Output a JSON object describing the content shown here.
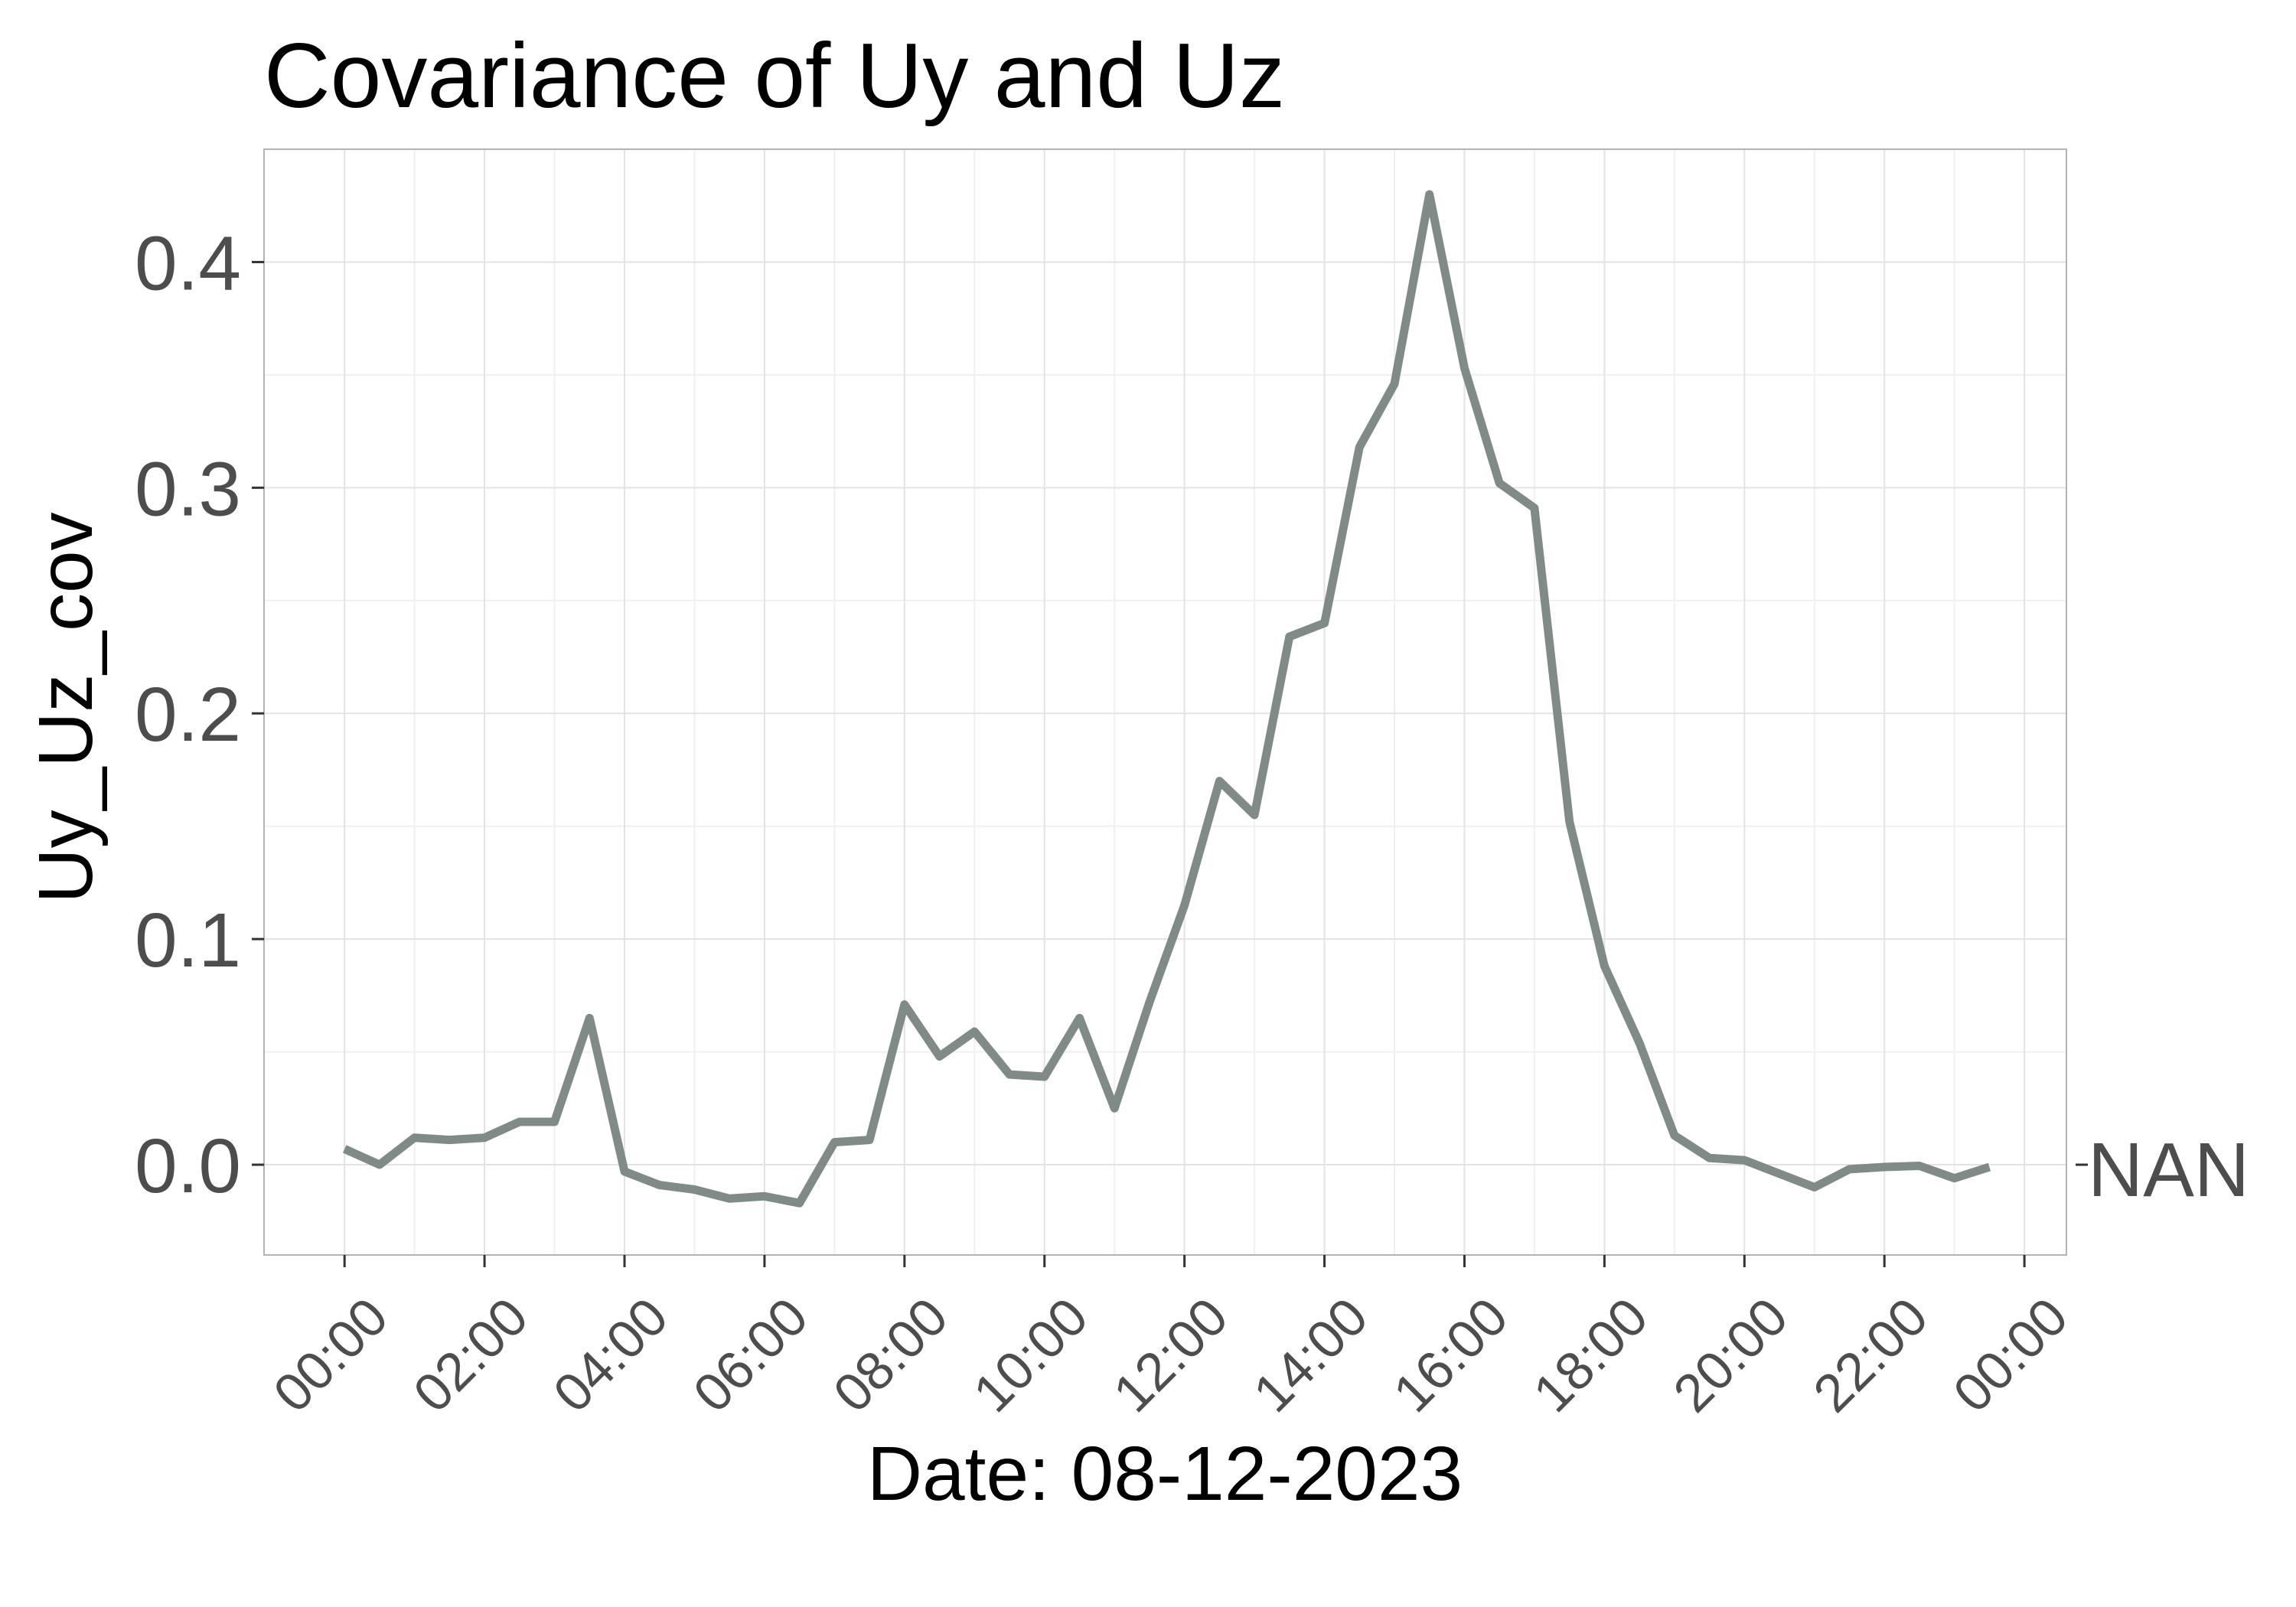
{
  "chart_data": {
    "type": "line",
    "title": "Covariance of Uy and Uz",
    "xlabel": "Date: 08-12-2023",
    "ylabel": "Uy_Uz_cov",
    "x_ticks": [
      "00:00",
      "02:00",
      "04:00",
      "06:00",
      "08:00",
      "10:00",
      "12:00",
      "14:00",
      "16:00",
      "18:00",
      "20:00",
      "22:00",
      "00:00"
    ],
    "y_ticks": [
      "0.0",
      "0.1",
      "0.2",
      "0.3",
      "0.4"
    ],
    "xlim": [
      "00:00",
      "24:00"
    ],
    "ylim": [
      -0.04,
      0.45
    ],
    "grid": true,
    "series": [
      {
        "end_label": "NAN",
        "color": "#808a87",
        "x": [
          "00:00",
          "00:30",
          "01:00",
          "01:30",
          "02:00",
          "02:30",
          "03:00",
          "03:30",
          "04:00",
          "04:30",
          "05:00",
          "05:30",
          "06:00",
          "06:30",
          "07:00",
          "07:30",
          "08:00",
          "08:30",
          "09:00",
          "09:30",
          "10:00",
          "10:30",
          "11:00",
          "11:30",
          "12:00",
          "12:30",
          "13:00",
          "13:30",
          "14:00",
          "14:30",
          "15:00",
          "15:30",
          "16:00",
          "16:30",
          "17:00",
          "17:30",
          "18:00",
          "18:30",
          "19:00",
          "19:30",
          "20:00",
          "20:30",
          "21:00",
          "21:30",
          "22:00",
          "22:30",
          "23:00",
          "23:30"
        ],
        "values": [
          0.007,
          0.0,
          0.012,
          0.011,
          0.012,
          0.019,
          0.019,
          0.065,
          -0.003,
          -0.009,
          -0.011,
          -0.015,
          -0.014,
          -0.017,
          0.01,
          0.011,
          0.071,
          0.048,
          0.059,
          0.04,
          0.039,
          0.065,
          0.025,
          0.072,
          0.115,
          0.17,
          0.155,
          0.234,
          0.24,
          0.318,
          0.346,
          0.43,
          0.353,
          0.302,
          0.291,
          0.152,
          0.088,
          0.054,
          0.013,
          0.003,
          0.002,
          -0.004,
          -0.01,
          -0.002,
          -0.001,
          -0.0005,
          -0.006,
          -0.001
        ]
      }
    ]
  }
}
